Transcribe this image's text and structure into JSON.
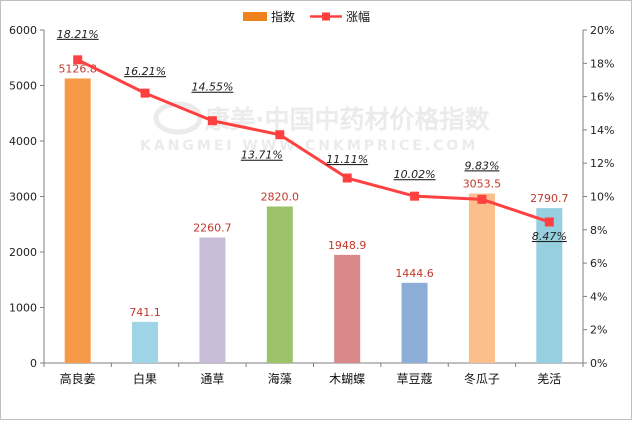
{
  "chart_data": {
    "type": "bar+line",
    "categories": [
      "高良姜",
      "白果",
      "通草",
      "海藻",
      "木蝴蝶",
      "草豆蔻",
      "冬瓜子",
      "羌活"
    ],
    "series": [
      {
        "name": "指数",
        "type": "bar",
        "axis": "left",
        "values": [
          5126.8,
          741.1,
          2260.7,
          2820.0,
          1948.9,
          1444.6,
          3053.5,
          2790.7
        ],
        "value_labels": [
          "5126.8",
          "741.1",
          "2260.7",
          "2820.0",
          "1948.9",
          "1444.6",
          "3053.5",
          "2790.7"
        ],
        "colors": [
          "#f79a48",
          "#9fd3e6",
          "#c8bcd9",
          "#9dc36a",
          "#d98989",
          "#8caed6",
          "#fbbf8c",
          "#96d0e0"
        ]
      },
      {
        "name": "涨幅",
        "type": "line",
        "axis": "right",
        "values": [
          18.21,
          16.21,
          14.55,
          13.71,
          11.11,
          10.02,
          9.83,
          8.47
        ],
        "value_labels": [
          "18.21%",
          "16.21%",
          "14.55%",
          "13.71%",
          "11.11%",
          "10.02%",
          "9.83%",
          "8.47%"
        ],
        "color": "#ff4040"
      }
    ],
    "y_left": {
      "min": 0,
      "max": 6000,
      "ticks": [
        "0",
        "1000",
        "2000",
        "3000",
        "4000",
        "5000",
        "6000"
      ]
    },
    "y_right": {
      "min": 0,
      "max": 20,
      "ticks": [
        "0%",
        "2%",
        "4%",
        "6%",
        "8%",
        "10%",
        "12%",
        "14%",
        "16%",
        "18%",
        "20%"
      ]
    },
    "bar_color_legend": "#f0811f",
    "grid": false,
    "legend_position": "top-center"
  },
  "watermark": {
    "line1": "康美·中国中药材价格指数",
    "line2": "KANGMEI WWW.CNKMPRICE.COM"
  }
}
